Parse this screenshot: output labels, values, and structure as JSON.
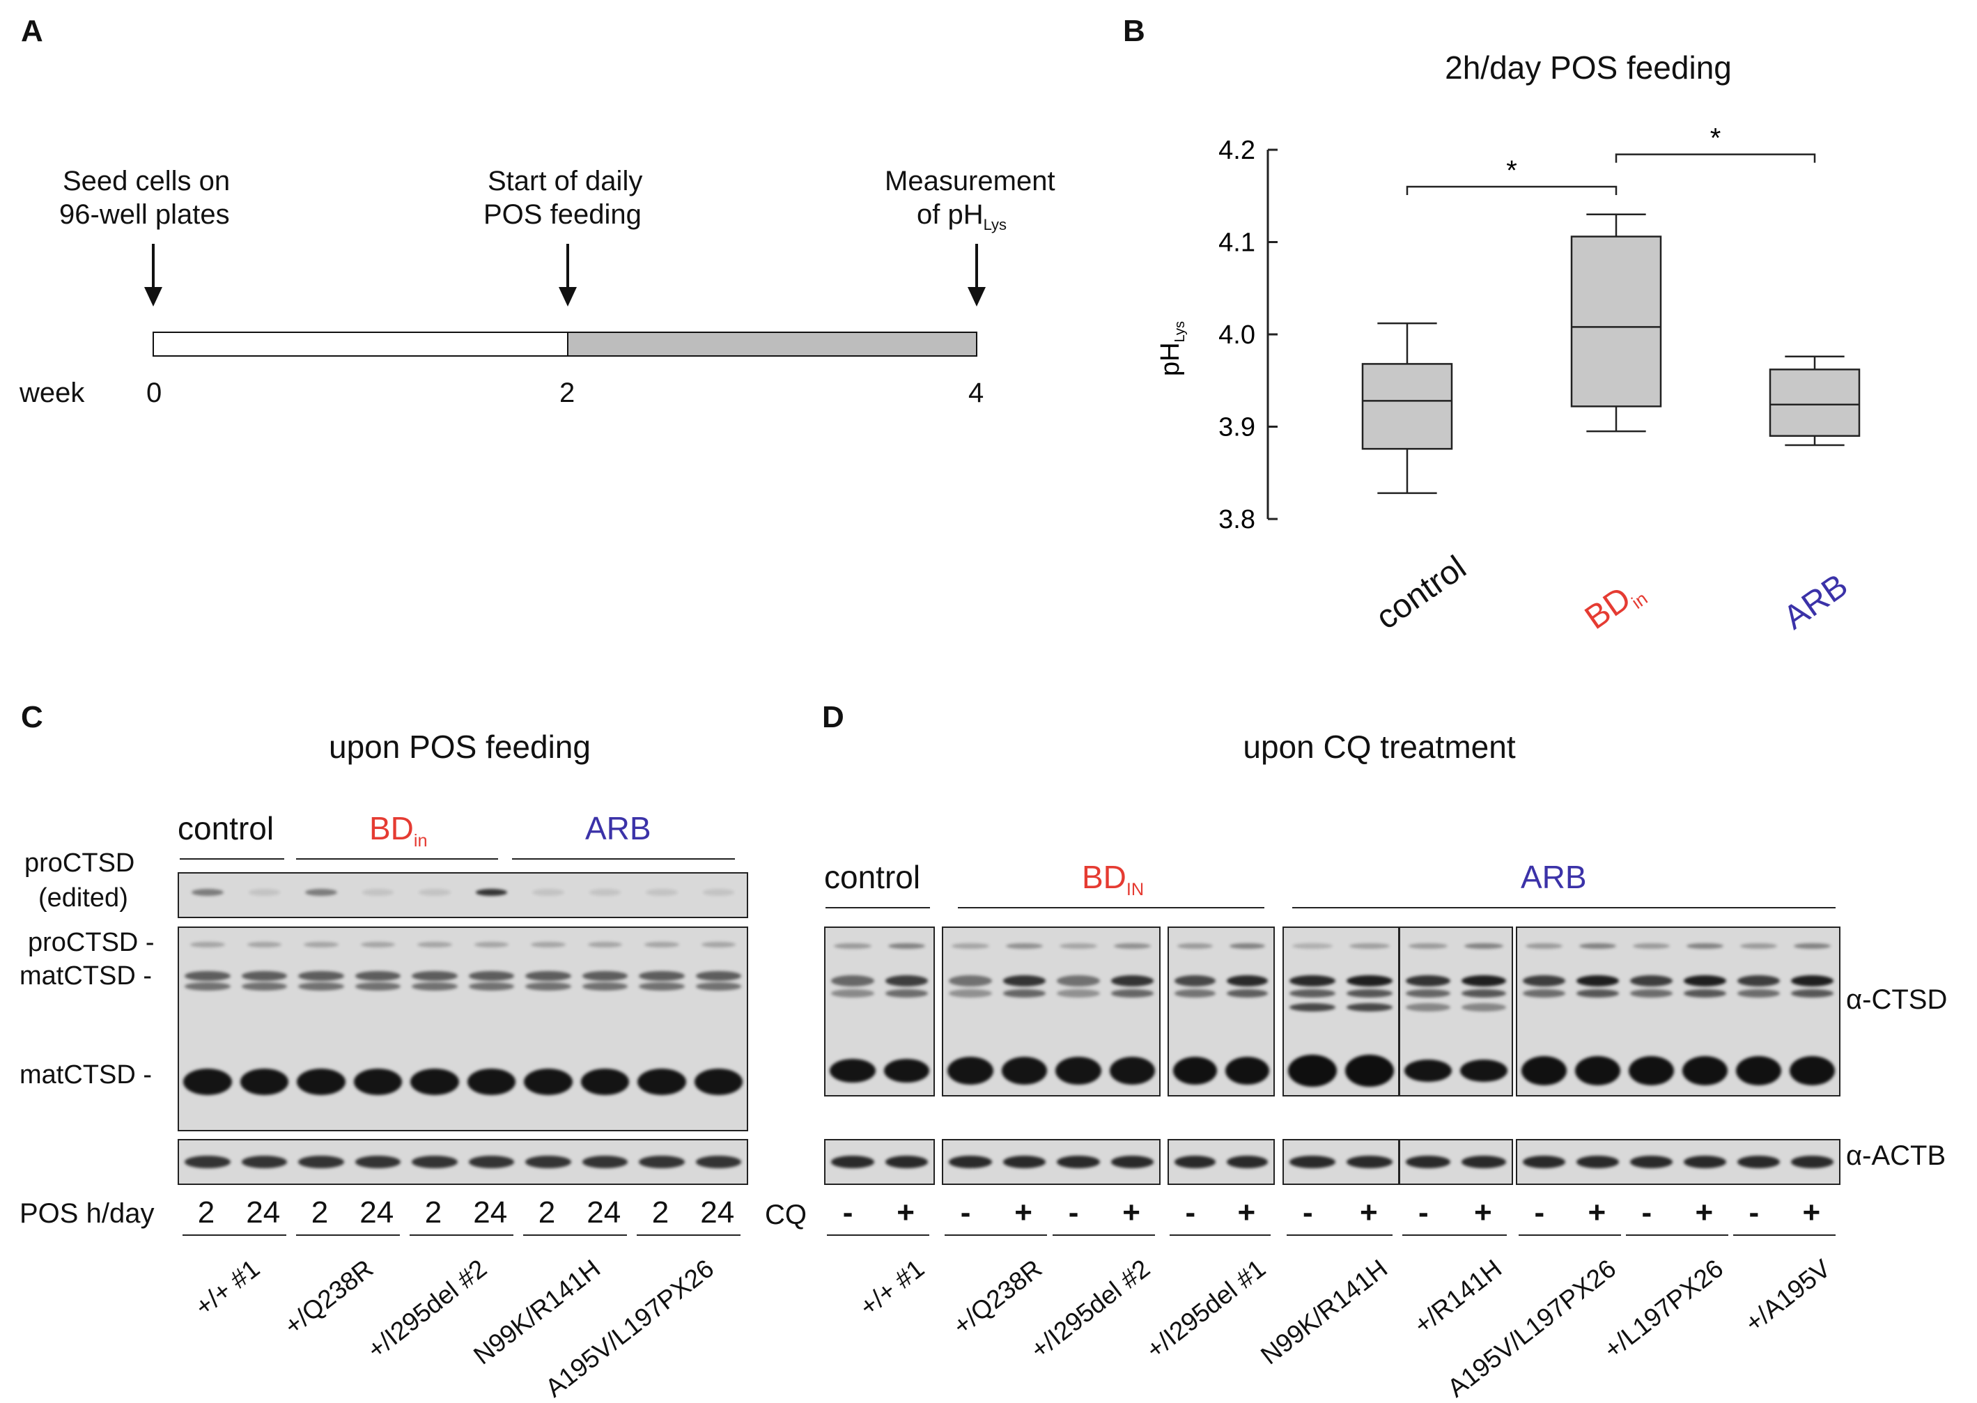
{
  "panelA": {
    "label": "A",
    "events": [
      {
        "line1": "Seed cells on",
        "line2": "96-well plates"
      },
      {
        "line1": "Start of daily",
        "line2": "POS feeding"
      },
      {
        "line1": "Measurement",
        "line2": "of pH",
        "sub": "Lys"
      }
    ],
    "axis_label": "week",
    "ticks": [
      "0",
      "2",
      "4"
    ],
    "colors": {
      "untreated": "#ffffff",
      "feeding": "#bdbdbd"
    }
  },
  "panelB": {
    "label": "B",
    "chart_data": {
      "type": "box",
      "title": "2h/day POS feeding",
      "ylabel": "pH",
      "ylabel_sub": "Lys",
      "ylim": [
        3.8,
        4.2
      ],
      "yticks": [
        "3.8",
        "3.9",
        "4.0",
        "4.1",
        "4.2"
      ],
      "categories": [
        {
          "name": "control",
          "sub": "",
          "color": "#111111"
        },
        {
          "name": "BD",
          "sub": "in",
          "color": "#e53b32"
        },
        {
          "name": "ARB",
          "sub": "",
          "color": "#3b32a8"
        }
      ],
      "boxes": [
        {
          "min": 3.828,
          "q1": 3.876,
          "median": 3.928,
          "q3": 3.968,
          "max": 4.012
        },
        {
          "min": 3.895,
          "q1": 3.922,
          "median": 4.008,
          "q3": 4.106,
          "max": 4.13
        },
        {
          "min": 3.88,
          "q1": 3.89,
          "median": 3.924,
          "q3": 3.962,
          "max": 3.976
        }
      ],
      "box_color": "#c8c8c8",
      "significance": [
        {
          "from": 0,
          "to": 1,
          "y": 4.16,
          "label": "*"
        },
        {
          "from": 1,
          "to": 2,
          "y": 4.195,
          "label": "*"
        }
      ]
    }
  },
  "panelC": {
    "label": "C",
    "title": "upon POS feeding",
    "groups": [
      {
        "name": "control",
        "sub": ""
      },
      {
        "name": "BD",
        "sub": "in"
      },
      {
        "name": "ARB",
        "sub": ""
      }
    ],
    "row_labels": {
      "edited_line1": "proCTSD",
      "edited_line2": "(edited)",
      "pro": "proCTSD -",
      "mat1": "matCTSD -",
      "mat2": "matCTSD -"
    },
    "pos_label": "POS h/day",
    "pos_values": [
      "2",
      "24",
      "2",
      "24",
      "2",
      "24",
      "2",
      "24",
      "2",
      "24"
    ],
    "samples": [
      "+/+ #1",
      "+/Q238R",
      "+/I295del #2",
      "N99K/R141H",
      "A195V/L197PX26"
    ]
  },
  "panelD": {
    "label": "D",
    "title": "upon CQ treatment",
    "groups": [
      {
        "name": "control",
        "sub": ""
      },
      {
        "name": "BD",
        "sub": "IN"
      },
      {
        "name": "ARB",
        "sub": ""
      }
    ],
    "antibodies": [
      "α-CTSD",
      "α-ACTB"
    ],
    "cq_label": "CQ",
    "cq_values": [
      "-",
      "+",
      "-",
      "+",
      "-",
      "+",
      "-",
      "+",
      "-",
      "+",
      "-",
      "+",
      "-",
      "+",
      "-",
      "+",
      "-",
      "+"
    ],
    "samples": [
      "+/+ #1",
      "+/Q238R",
      "+/I295del #2",
      "+/I295del #1",
      "N99K/R141H",
      "+/R141H",
      "A195V/L197PX26",
      "+/L197PX26",
      "+/A195V"
    ]
  }
}
